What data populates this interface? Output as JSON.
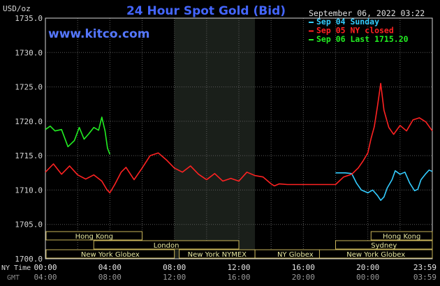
{
  "header": {
    "units": "USD/oz",
    "title": "24 Hour Spot Gold (Bid)",
    "website": "www.kitco.com",
    "timestamp": "September 06, 2022 03:22"
  },
  "legend": [
    {
      "label": "Sep 04 Sunday",
      "color": "#33ccff"
    },
    {
      "label": "Sep 05 NY closed",
      "color": "#ff2222"
    },
    {
      "label": "Sep 06 Last 1715.20",
      "color": "#22ee22"
    }
  ],
  "sessions": [
    {
      "label": "Hong Kong",
      "row": 0,
      "start": 0,
      "end": 6
    },
    {
      "label": "London",
      "row": 1,
      "start": 3,
      "end": 12
    },
    {
      "label": "New York Globex",
      "row": 2,
      "start": -1,
      "end": 8
    },
    {
      "label": "New York NYMEX",
      "row": 2,
      "start": 8.3,
      "end": 13
    },
    {
      "label": "NY Globex",
      "row": 2,
      "start": 13,
      "end": 18
    },
    {
      "label": "Hong Kong",
      "row": 0,
      "start": 20.2,
      "end": 24
    },
    {
      "label": "Sydney",
      "row": 1,
      "start": 18,
      "end": 24
    },
    {
      "label": "New York Globex",
      "row": 2,
      "start": 17,
      "end": 24
    }
  ],
  "time_rows": {
    "ny_label": "NY Time",
    "gmt_label": "GMT",
    "ny_ticks": [
      "00:00",
      "04:00",
      "08:00",
      "12:00",
      "16:00",
      "20:00",
      "23:59"
    ],
    "gmt_ticks": [
      "04:00",
      "08:00",
      "12:00",
      "16:00",
      "20:00",
      "00:00",
      "03:59"
    ]
  },
  "chart_data": {
    "type": "line",
    "title": "24 Hour Spot Gold (Bid)",
    "ylabel": "USD/oz",
    "xlabel": "",
    "xlim": [
      0,
      24
    ],
    "ylim": [
      1700,
      1735
    ],
    "yticks": [
      1700,
      1705,
      1710,
      1715,
      1720,
      1725,
      1730,
      1735
    ],
    "grid": true,
    "shaded_region": [
      8,
      13
    ],
    "series": [
      {
        "name": "Sep 04 Sunday",
        "color": "#33ccff",
        "x": [
          18,
          18.6,
          19,
          19.3,
          19.6,
          20,
          20.3,
          20.6,
          20.8,
          21,
          21.2,
          21.5,
          21.7,
          22,
          22.3,
          22.6,
          22.9,
          23.1,
          23.3,
          23.6,
          23.8,
          24
        ],
        "y": [
          1712.5,
          1712.5,
          1712.4,
          1711,
          1710,
          1709.6,
          1710,
          1709.2,
          1708.5,
          1709,
          1710.3,
          1711.5,
          1712.8,
          1712.3,
          1712.6,
          1711,
          1709.9,
          1710.1,
          1711.5,
          1712.4,
          1712.9,
          1712.7
        ]
      },
      {
        "name": "Sep 05 NY closed",
        "color": "#ff2222",
        "x": [
          0,
          0.5,
          1,
          1.5,
          2,
          2.5,
          3,
          3.5,
          3.8,
          4,
          4.3,
          4.7,
          5,
          5.5,
          6,
          6.5,
          7,
          7.5,
          8,
          8.5,
          9,
          9.5,
          10,
          10.5,
          11,
          11.5,
          12,
          12.5,
          13,
          13.5,
          14,
          14.2,
          14.5,
          15,
          16,
          17,
          18,
          18.5,
          19,
          19.4,
          19.7,
          20,
          20.2,
          20.4,
          20.6,
          20.8,
          21,
          21.3,
          21.6,
          22,
          22.4,
          22.8,
          23.2,
          23.6,
          24
        ],
        "y": [
          1712.6,
          1713.8,
          1712.3,
          1713.5,
          1712.2,
          1711.6,
          1712.2,
          1711.3,
          1710.1,
          1709.6,
          1710.8,
          1712.6,
          1713.3,
          1711.5,
          1713.2,
          1715,
          1715.4,
          1714.4,
          1713.2,
          1712.6,
          1713.5,
          1712.3,
          1711.5,
          1712.4,
          1711.3,
          1711.7,
          1711.3,
          1712.6,
          1712.1,
          1711.9,
          1710.9,
          1710.6,
          1710.9,
          1710.8,
          1710.8,
          1710.8,
          1710.8,
          1711.9,
          1712.3,
          1713.2,
          1714.2,
          1715.4,
          1717.5,
          1719.2,
          1722.2,
          1725.5,
          1721.6,
          1719.1,
          1718.1,
          1719.4,
          1718.6,
          1720.2,
          1720.5,
          1719.9,
          1718.6
        ]
      },
      {
        "name": "Sep 06 Last 1715.20",
        "color": "#22ee22",
        "x": [
          0,
          0.3,
          0.6,
          1,
          1.4,
          1.8,
          2.1,
          2.4,
          2.7,
          3,
          3.3,
          3.5,
          3.7,
          3.85,
          4
        ],
        "y": [
          1718.8,
          1719.3,
          1718.6,
          1718.8,
          1716.3,
          1717.2,
          1719.1,
          1717.4,
          1718.2,
          1719.1,
          1718.7,
          1720.6,
          1718.6,
          1716.1,
          1715.2
        ]
      }
    ]
  }
}
